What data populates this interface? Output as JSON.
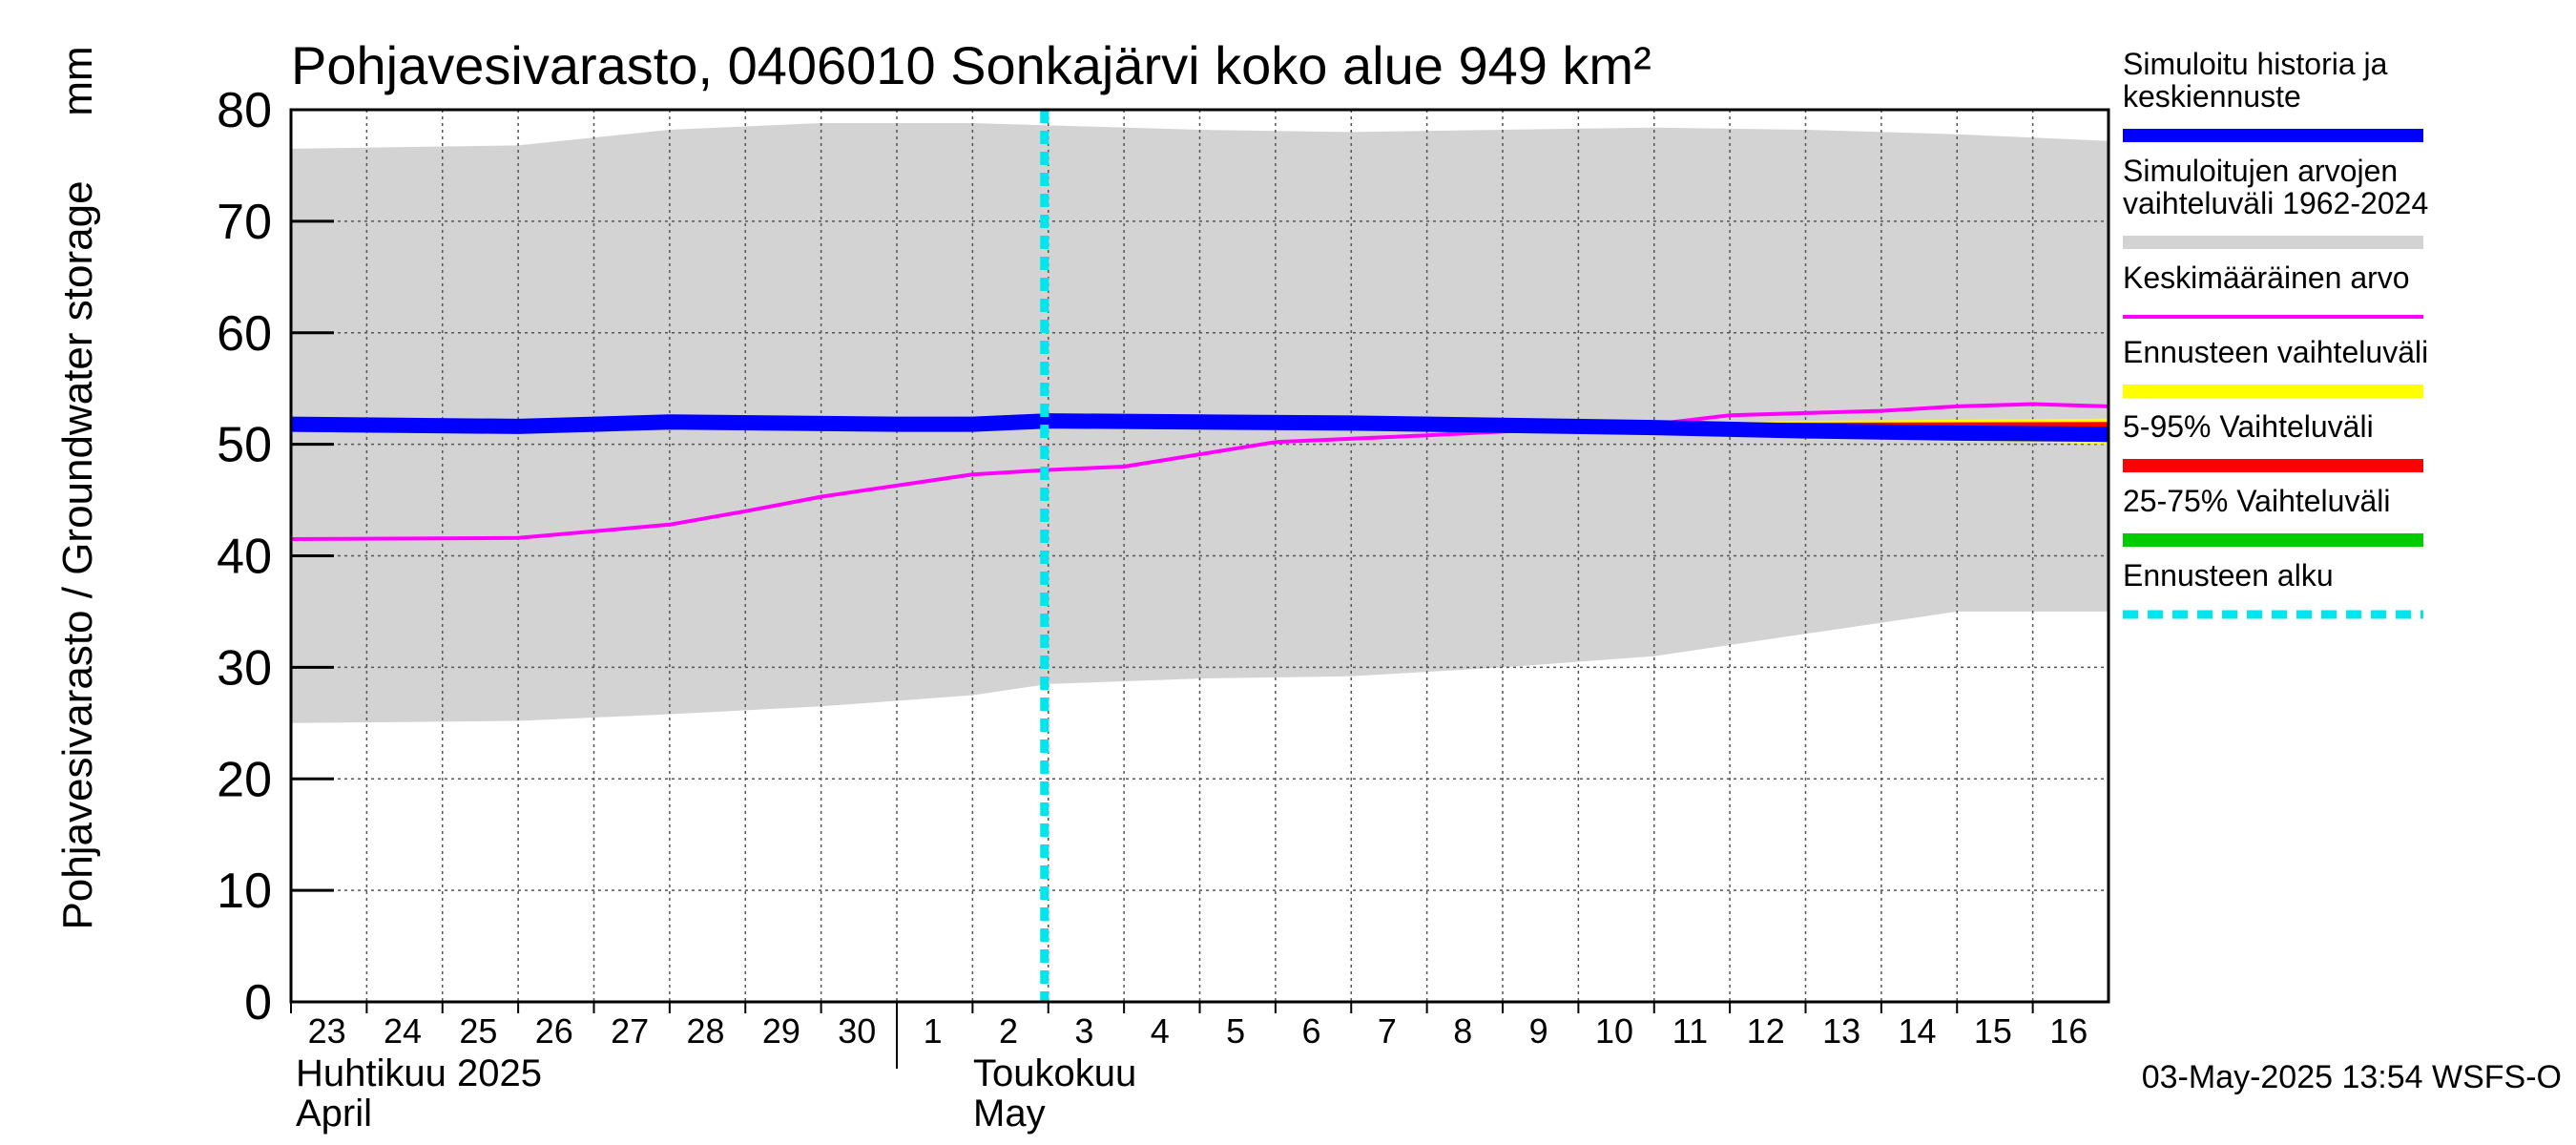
{
  "chart_data": {
    "type": "line",
    "title": "Pohjavesivarasto, 0406010 Sonkajärvi koko alue 949 km²",
    "ylabel": "Pohjavesivarasto / Groundwater storage",
    "yunit": "mm",
    "ylim": [
      0,
      80
    ],
    "yticks": [
      "0",
      "10",
      "20",
      "30",
      "40",
      "50",
      "60",
      "70",
      "80"
    ],
    "xlim": [
      "2025-04-23",
      "2025-05-17"
    ],
    "x_day_labels": [
      "23",
      "24",
      "25",
      "26",
      "27",
      "28",
      "29",
      "30",
      "1",
      "2",
      "3",
      "4",
      "5",
      "6",
      "7",
      "8",
      "9",
      "10",
      "11",
      "12",
      "13",
      "14",
      "15",
      "16"
    ],
    "x_day_dates": [
      "2025-04-23",
      "2025-04-24",
      "2025-04-25",
      "2025-04-26",
      "2025-04-27",
      "2025-04-28",
      "2025-04-29",
      "2025-04-30",
      "2025-05-01",
      "2025-05-02",
      "2025-05-03",
      "2025-05-04",
      "2025-05-05",
      "2025-05-06",
      "2025-05-07",
      "2025-05-08",
      "2025-05-09",
      "2025-05-10",
      "2025-05-11",
      "2025-05-12",
      "2025-05-13",
      "2025-05-14",
      "2025-05-15",
      "2025-05-16"
    ],
    "months": [
      {
        "line1": "Huhtikuu  2025",
        "line2": "April",
        "date": "2025-04-23"
      },
      {
        "line1": "Toukokuu",
        "line2": "May",
        "date": "2025-05-01"
      }
    ],
    "grid": true,
    "legend_position": "right",
    "forecast_start": "2025-05-03",
    "series": [
      {
        "name": "Simuloitujen arvojen vaihteluväli 1962-2024",
        "kind": "band",
        "color": "#d3d3d3",
        "x": [
          "2025-04-23",
          "2025-04-26",
          "2025-04-28",
          "2025-04-30",
          "2025-05-02",
          "2025-05-03",
          "2025-05-05",
          "2025-05-07",
          "2025-05-09",
          "2025-05-11",
          "2025-05-13",
          "2025-05-15",
          "2025-05-17"
        ],
        "upper": [
          76.5,
          76.8,
          78.2,
          78.8,
          78.8,
          78.6,
          78.2,
          78.0,
          78.2,
          78.4,
          78.2,
          77.8,
          77.2
        ],
        "lower": [
          25.0,
          25.2,
          25.8,
          26.5,
          27.5,
          28.5,
          29.0,
          29.2,
          30.0,
          31.0,
          33.0,
          35.0,
          35.0
        ]
      },
      {
        "name": "Keskimääräinen arvo",
        "kind": "line",
        "color": "#ff00ff",
        "x": [
          "2025-04-23",
          "2025-04-26",
          "2025-04-28",
          "2025-04-29",
          "2025-04-30",
          "2025-05-02",
          "2025-05-03",
          "2025-05-04",
          "2025-05-06",
          "2025-05-08",
          "2025-05-10",
          "2025-05-11",
          "2025-05-12",
          "2025-05-13",
          "2025-05-14",
          "2025-05-15",
          "2025-05-16",
          "2025-05-17"
        ],
        "values": [
          41.5,
          41.6,
          42.8,
          44.0,
          45.3,
          47.3,
          47.7,
          48.0,
          50.2,
          50.8,
          51.5,
          51.8,
          52.6,
          52.8,
          53.0,
          53.4,
          53.6,
          53.4
        ]
      },
      {
        "name": "Simuloitu historia ja keskiennuste",
        "kind": "line",
        "color": "#0000ff",
        "x": [
          "2025-04-23",
          "2025-04-26",
          "2025-04-28",
          "2025-05-01",
          "2025-05-02",
          "2025-05-03",
          "2025-05-05",
          "2025-05-07",
          "2025-05-09",
          "2025-05-11",
          "2025-05-13",
          "2025-05-15",
          "2025-05-17"
        ],
        "values": [
          51.8,
          51.6,
          52.0,
          51.8,
          51.8,
          52.1,
          52.0,
          51.9,
          51.7,
          51.5,
          51.2,
          51.0,
          50.9
        ]
      }
    ],
    "forecast_bands": [
      {
        "name": "Ennusteen vaihteluväli",
        "color": "#ffff00",
        "x": [
          "2025-05-09",
          "2025-05-17"
        ],
        "upper": [
          51.9,
          52.3
        ],
        "lower": [
          51.5,
          50.0
        ]
      },
      {
        "name": "5-95% Vaihteluväli",
        "color": "#ff0000",
        "x": [
          "2025-05-09",
          "2025-05-17"
        ],
        "upper": [
          51.9,
          52.0
        ],
        "lower": [
          51.5,
          50.2
        ]
      },
      {
        "name": "25-75% Vaihteluväli",
        "color": "#00cc00",
        "x": [
          "2025-05-09",
          "2025-05-17"
        ],
        "upper": [
          51.8,
          51.3
        ],
        "lower": [
          51.6,
          50.7
        ]
      }
    ],
    "legend": [
      {
        "label": "Simuloitu historia ja\nkeskiennuste",
        "color": "#0000ff",
        "style": "solid"
      },
      {
        "label": "Simuloitujen arvojen\nvaihteluväli 1962-2024",
        "color": "#d3d3d3",
        "style": "solid"
      },
      {
        "label": "Keskimääräinen arvo",
        "color": "#ff00ff",
        "style": "thin"
      },
      {
        "label": "Ennusteen vaihteluväli",
        "color": "#ffff00",
        "style": "solid"
      },
      {
        "label": "5-95% Vaihteluväli",
        "color": "#ff0000",
        "style": "solid"
      },
      {
        "label": "25-75% Vaihteluväli",
        "color": "#00cc00",
        "style": "solid"
      },
      {
        "label": "Ennusteen alku",
        "color": "#00e5ee",
        "style": "dotted"
      }
    ],
    "footer_timestamp": "03-May-2025 13:54 WSFS-O"
  }
}
